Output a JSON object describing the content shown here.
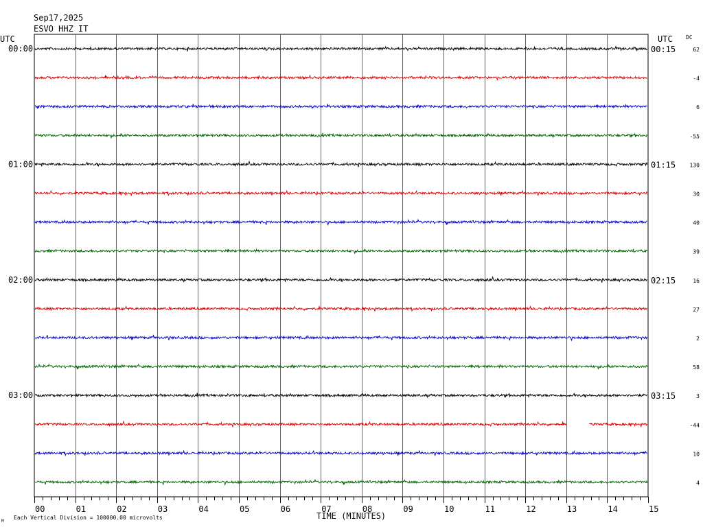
{
  "header": {
    "date": "Sep17,2025",
    "station": "ESVO HHZ IT"
  },
  "left_label": "UTC",
  "right_label": "UTC",
  "dc_label": "DC",
  "footer": {
    "corner_mark": "M",
    "scale_note": "Each Vertical Division = 100000.00 microvolts"
  },
  "chart_data": {
    "type": "line",
    "title": "",
    "xlabel": "TIME (MINUTES)",
    "xlim": [
      0,
      15
    ],
    "x_ticks": [
      "00",
      "01",
      "02",
      "03",
      "04",
      "05",
      "06",
      "07",
      "08",
      "09",
      "10",
      "11",
      "12",
      "13",
      "14",
      "15"
    ],
    "trace_colors": [
      "#000000",
      "#e00000",
      "#0000c8",
      "#006400"
    ],
    "grid": true,
    "rows": [
      {
        "left": "00:00",
        "right": "00:15",
        "dc": "62",
        "color": "#000000"
      },
      {
        "left": "",
        "right": "",
        "dc": "-4",
        "color": "#e00000"
      },
      {
        "left": "",
        "right": "",
        "dc": "6",
        "color": "#0000c8"
      },
      {
        "left": "",
        "right": "",
        "dc": "-55",
        "color": "#006400"
      },
      {
        "left": "01:00",
        "right": "01:15",
        "dc": "130",
        "color": "#000000"
      },
      {
        "left": "",
        "right": "",
        "dc": "30",
        "color": "#e00000"
      },
      {
        "left": "",
        "right": "",
        "dc": "40",
        "color": "#0000c8"
      },
      {
        "left": "",
        "right": "",
        "dc": "39",
        "color": "#006400"
      },
      {
        "left": "02:00",
        "right": "02:15",
        "dc": "16",
        "color": "#000000"
      },
      {
        "left": "",
        "right": "",
        "dc": "27",
        "color": "#e00000"
      },
      {
        "left": "",
        "right": "",
        "dc": "2",
        "color": "#0000c8"
      },
      {
        "left": "",
        "right": "",
        "dc": "58",
        "color": "#006400"
      },
      {
        "left": "03:00",
        "right": "03:15",
        "dc": "3",
        "color": "#000000"
      },
      {
        "left": "",
        "right": "",
        "dc": "-44",
        "color": "#e00000",
        "gap_minutes": [
          13.0,
          13.55
        ]
      },
      {
        "left": "",
        "right": "",
        "dc": "10",
        "color": "#0000c8"
      },
      {
        "left": "",
        "right": "",
        "dc": "4",
        "color": "#006400"
      }
    ]
  }
}
